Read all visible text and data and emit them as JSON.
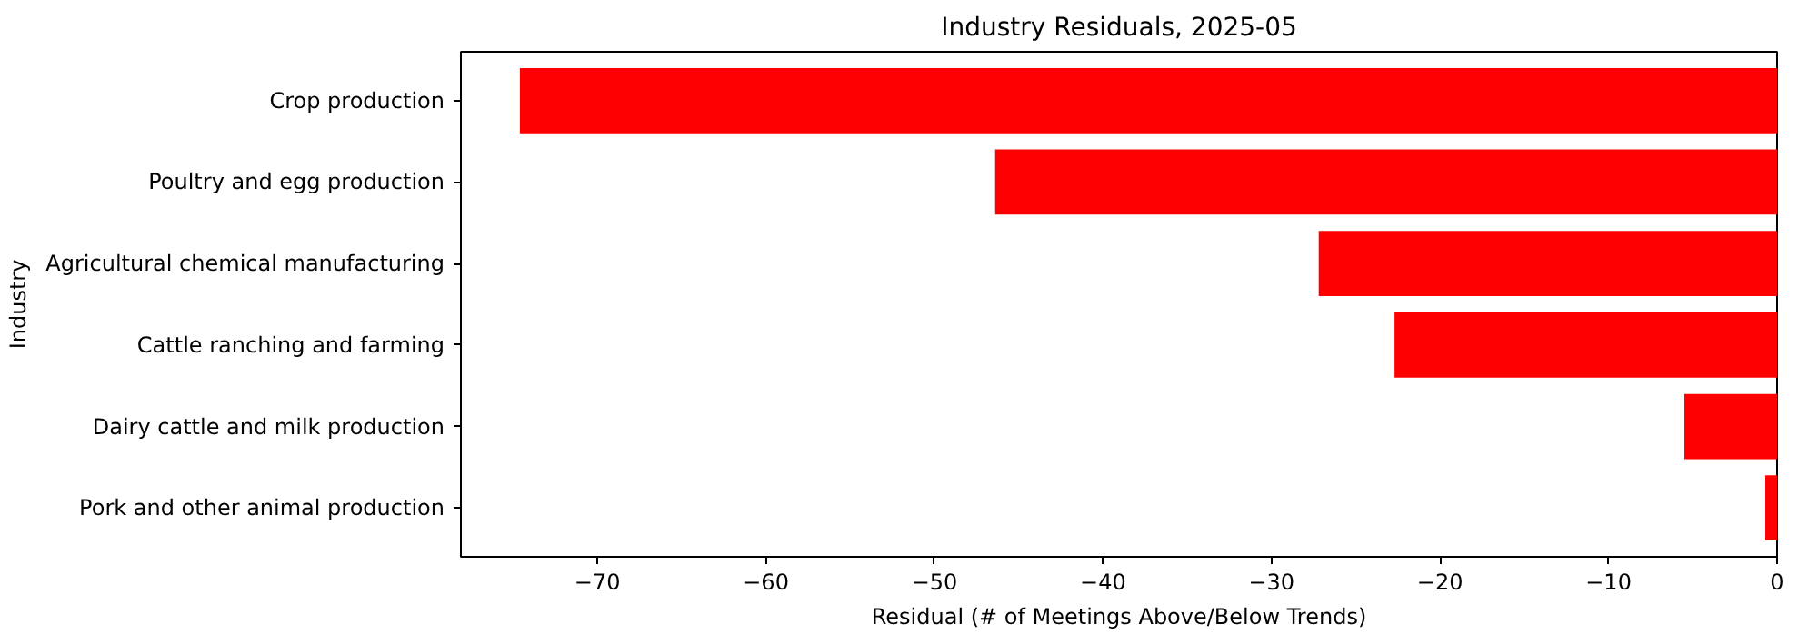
{
  "chart_data": {
    "type": "bar",
    "orientation": "horizontal",
    "title": "Industry Residuals, 2025-05",
    "xlabel": "Residual (# of Meetings Above/Below Trends)",
    "ylabel": "Industry",
    "categories": [
      "Crop production",
      "Poultry and egg production",
      "Agricultural chemical manufacturing",
      "Cattle ranching and farming",
      "Dairy cattle and milk production",
      "Pork and other animal production"
    ],
    "values": [
      -74.6,
      -46.4,
      -27.2,
      -22.7,
      -5.5,
      -0.7
    ],
    "color": "#ff0000",
    "xlim": [
      -78.1,
      0
    ],
    "xticks": [
      -70,
      -60,
      -50,
      -40,
      -30,
      -20,
      -10,
      0
    ],
    "grid": false
  }
}
